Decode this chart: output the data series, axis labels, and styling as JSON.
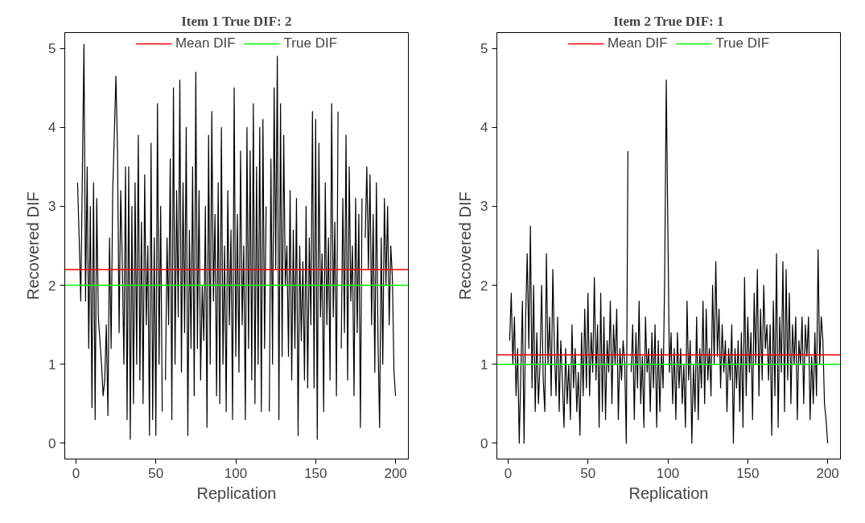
{
  "chart_data": [
    {
      "type": "line",
      "title": "Item 1 True DIF: 2",
      "xlabel": "Replication",
      "ylabel": "Recovered DIF",
      "xlim": [
        -7,
        208
      ],
      "ylim": [
        -0.2,
        5.2
      ],
      "xticks": [
        0,
        50,
        100,
        150,
        200
      ],
      "yticks": [
        0,
        1,
        2,
        3,
        4,
        5
      ],
      "grid": false,
      "legend": "top",
      "marker": "none",
      "line_style": "solid",
      "x": [
        1,
        2,
        3,
        4,
        5,
        6,
        7,
        8,
        9,
        10,
        11,
        12,
        13,
        14,
        15,
        16,
        17,
        18,
        19,
        20,
        21,
        22,
        23,
        24,
        25,
        26,
        27,
        28,
        29,
        30,
        31,
        32,
        33,
        34,
        35,
        36,
        37,
        38,
        39,
        40,
        41,
        42,
        43,
        44,
        45,
        46,
        47,
        48,
        49,
        50,
        51,
        52,
        53,
        54,
        55,
        56,
        57,
        58,
        59,
        60,
        61,
        62,
        63,
        64,
        65,
        66,
        67,
        68,
        69,
        70,
        71,
        72,
        73,
        74,
        75,
        76,
        77,
        78,
        79,
        80,
        81,
        82,
        83,
        84,
        85,
        86,
        87,
        88,
        89,
        90,
        91,
        92,
        93,
        94,
        95,
        96,
        97,
        98,
        99,
        100,
        101,
        102,
        103,
        104,
        105,
        106,
        107,
        108,
        109,
        110,
        111,
        112,
        113,
        114,
        115,
        116,
        117,
        118,
        119,
        120,
        121,
        122,
        123,
        124,
        125,
        126,
        127,
        128,
        129,
        130,
        131,
        132,
        133,
        134,
        135,
        136,
        137,
        138,
        139,
        140,
        141,
        142,
        143,
        144,
        145,
        146,
        147,
        148,
        149,
        150,
        151,
        152,
        153,
        154,
        155,
        156,
        157,
        158,
        159,
        160,
        161,
        162,
        163,
        164,
        165,
        166,
        167,
        168,
        169,
        170,
        171,
        172,
        173,
        174,
        175,
        176,
        177,
        178,
        179,
        180,
        181,
        182,
        183,
        184,
        185,
        186,
        187,
        188,
        189,
        190,
        191,
        192,
        193,
        194,
        195,
        196,
        197,
        198,
        199,
        200
      ],
      "series": [
        {
          "color": "#000000",
          "values": [
            3.3,
            2.6,
            1.8,
            3.4,
            5.05,
            1.8,
            3.5,
            1.2,
            3.0,
            0.45,
            3.3,
            0.3,
            3.1,
            1.6,
            1.3,
            1.0,
            0.6,
            0.8,
            1.5,
            0.35,
            2.6,
            1.2,
            3.2,
            3.9,
            4.65,
            3.7,
            1.4,
            3.2,
            2.3,
            1.0,
            3.5,
            0.3,
            3.5,
            0.05,
            3.0,
            0.5,
            3.3,
            1.0,
            3.9,
            0.8,
            2.8,
            0.5,
            3.4,
            1.5,
            2.5,
            0.1,
            3.8,
            0.3,
            2.6,
            0.1,
            4.3,
            1.0,
            3.0,
            0.4,
            null,
            0.8,
            2.6,
            1.5,
            3.6,
            0.3,
            4.5,
            1.0,
            3.2,
            1.6,
            4.6,
            0.9,
            3.3,
            1.4,
            4.0,
            0.1,
            2.7,
            1.2,
            3.5,
            0.6,
            4.7,
            1.2,
            3.2,
            0.8,
            2.0,
            1.3,
            3.0,
            0.2,
            3.9,
            1.0,
            4.2,
            1.8,
            2.9,
            0.6,
            3.3,
            0.5,
            4.0,
            1.0,
            2.5,
            0.4,
            3.2,
            1.5,
            2.7,
            0.3,
            4.5,
            1.1,
            2.9,
            0.9,
            3.7,
            1.5,
            2.5,
            0.3,
            4.0,
            1.2,
            3.7,
            0.8,
            4.3,
            0.5,
            3.5,
            1.0,
            4.0,
            0.4,
            4.1,
            1.2,
            3.0,
            null,
            0.4,
            3.6,
            1.0,
            4.5,
            2.2,
            4.9,
            0.3,
            4.3,
            1.1,
            3.9,
            2.0,
            2.5,
            1.1,
            3.2,
            0.8,
            2.7,
            1.2,
            3.1,
            0.1,
            2.5,
            1.3,
            2.3,
            0.8,
            3.0,
            0.7,
            2.6,
            1.5,
            4.2,
            0.7,
            4.1,
            0.05,
            3.8,
            1.6,
            2.4,
            0.4,
            3.3,
            1.5,
            2.6,
            0.8,
            4.3,
            1.6,
            2.8,
            0.6,
            4.2,
            null,
            1.2,
            3.1,
            1.4,
            3.9,
            0.8,
            3.5,
            1.8,
            2.5,
            0.6,
            3.1,
            1.4,
            2.9,
            0.2,
            3.1,
            null,
            2.6,
            3.5,
            2.2,
            3.4,
            1.5,
            2.9,
            0.9,
            3.3,
            1.3,
            0.2,
            2.6,
            1.0,
            3.1,
            2.0,
            3.0,
            1.5,
            2.5,
            2.1,
            0.9,
            0.6
          ]
        }
      ],
      "ref_lines": [
        {
          "axis": "y",
          "value": 2.2,
          "label": "Mean DIF",
          "color": "#ff0000"
        },
        {
          "axis": "y",
          "value": 2.0,
          "label": "True DIF",
          "color": "#00ff00"
        }
      ]
    },
    {
      "type": "line",
      "title": "Item 2 True DIF: 1",
      "xlabel": "Replication",
      "ylabel": "Recovered DIF",
      "xlim": [
        -7,
        208
      ],
      "ylim": [
        -0.2,
        5.2
      ],
      "xticks": [
        0,
        50,
        100,
        150,
        200
      ],
      "yticks": [
        0,
        1,
        2,
        3,
        4,
        5
      ],
      "grid": false,
      "legend": "top",
      "marker": "none",
      "line_style": "solid",
      "x": [
        1,
        2,
        3,
        4,
        5,
        6,
        7,
        8,
        9,
        10,
        11,
        12,
        13,
        14,
        15,
        16,
        17,
        18,
        19,
        20,
        21,
        22,
        23,
        24,
        25,
        26,
        27,
        28,
        29,
        30,
        31,
        32,
        33,
        34,
        35,
        36,
        37,
        38,
        39,
        40,
        41,
        42,
        43,
        44,
        45,
        46,
        47,
        48,
        49,
        50,
        51,
        52,
        53,
        54,
        55,
        56,
        57,
        58,
        59,
        60,
        61,
        62,
        63,
        64,
        65,
        66,
        67,
        68,
        69,
        70,
        71,
        72,
        73,
        74,
        75,
        76,
        77,
        78,
        79,
        80,
        81,
        82,
        83,
        84,
        85,
        86,
        87,
        88,
        89,
        90,
        91,
        92,
        93,
        94,
        95,
        96,
        97,
        98,
        99,
        100,
        101,
        102,
        103,
        104,
        105,
        106,
        107,
        108,
        109,
        110,
        111,
        112,
        113,
        114,
        115,
        116,
        117,
        118,
        119,
        120,
        121,
        122,
        123,
        124,
        125,
        126,
        127,
        128,
        129,
        130,
        131,
        132,
        133,
        134,
        135,
        136,
        137,
        138,
        139,
        140,
        141,
        142,
        143,
        144,
        145,
        146,
        147,
        148,
        149,
        150,
        151,
        152,
        153,
        154,
        155,
        156,
        157,
        158,
        159,
        160,
        161,
        162,
        163,
        164,
        165,
        166,
        167,
        168,
        169,
        170,
        171,
        172,
        173,
        174,
        175,
        176,
        177,
        178,
        179,
        180,
        181,
        182,
        183,
        184,
        185,
        186,
        187,
        188,
        189,
        190,
        191,
        192,
        193,
        194,
        195,
        196,
        197,
        198,
        199,
        200
      ],
      "series": [
        {
          "color": "#000000",
          "values": [
            1.3,
            1.9,
            1.0,
            1.6,
            0.6,
            1.2,
            0.0,
            0.9,
            1.8,
            0.0,
            1.6,
            2.4,
            1.2,
            2.75,
            0.7,
            2.0,
            0.4,
            1.4,
            0.5,
            1.0,
            2.0,
            0.8,
            0.4,
            2.4,
            1.0,
            1.6,
            0.6,
            2.2,
            1.2,
            0.6,
            1.6,
            0.4,
            1.3,
            0.8,
            0.2,
            1.2,
            0.5,
            1.0,
            0.3,
            1.5,
            0.7,
            1.2,
            0.4,
            0.9,
            0.1,
            1.4,
            0.6,
            1.7,
            0.7,
            1.9,
            0.6,
            1.4,
            0.9,
            2.1,
            0.8,
            1.5,
            0.2,
            1.9,
            0.4,
            1.6,
            0.3,
            1.3,
            0.9,
            1.8,
            0.5,
            1.5,
            1.0,
            1.7,
            0.3,
            1.2,
            0.8,
            1.3,
            1.0,
            0.0,
            3.7,
            null,
            0.9,
            1.5,
            0.3,
            1.4,
            0.7,
            1.8,
            0.5,
            1.1,
            0.2,
            1.6,
            0.9,
            1.2,
            0.4,
            1.4,
            0.7,
            1.5,
            0.2,
            1.3,
            0.4,
            1.2,
            0.7,
            2.1,
            4.6,
            2.7,
            0.9,
            1.4,
            0.5,
            1.2,
            0.3,
            1.4,
            0.7,
            1.2,
            0.5,
            1.0,
            0.2,
            1.8,
            0.8,
            1.3,
            0.0,
            1.0,
            0.4,
            1.6,
            0.3,
            1.2,
            0.7,
            1.8,
            0.5,
            1.7,
            0.8,
            1.2,
            0.6,
            2.0,
            1.0,
            2.3,
            1.1,
            1.7,
            0.7,
            1.5,
            0.9,
            1.3,
            0.4,
            1.2,
            0.8,
            1.5,
            0.0,
            1.2,
            0.7,
            1.3,
            0.4,
            1.4,
            0.2,
            2.1,
            0.6,
            1.6,
            0.9,
            1.4,
            0.3,
            1.9,
            1.0,
            2.2,
            0.6,
            1.7,
            0.8,
            2.0,
            1.2,
            1.5,
            0.8,
            1.5,
            0.1,
            1.8,
            0.6,
            2.4,
            0.2,
            1.6,
            0.9,
            2.3,
            0.4,
            2.2,
            0.8,
            1.9,
            0.5,
            1.5,
            1.0,
            1.6,
            0.3,
            1.3,
            1.0,
            1.6,
            0.5,
            1.5,
            1.1,
            1.6,
            0.3,
            1.1,
            0.5,
            1.4,
            0.6,
            2.45,
            1.0,
            1.6,
            1.3,
            0.5,
            0.3,
            0.0
          ]
        }
      ],
      "ref_lines": [
        {
          "axis": "y",
          "value": 1.12,
          "label": "Mean DIF",
          "color": "#ff0000"
        },
        {
          "axis": "y",
          "value": 1.0,
          "label": "True DIF",
          "color": "#00ff00"
        }
      ]
    }
  ]
}
